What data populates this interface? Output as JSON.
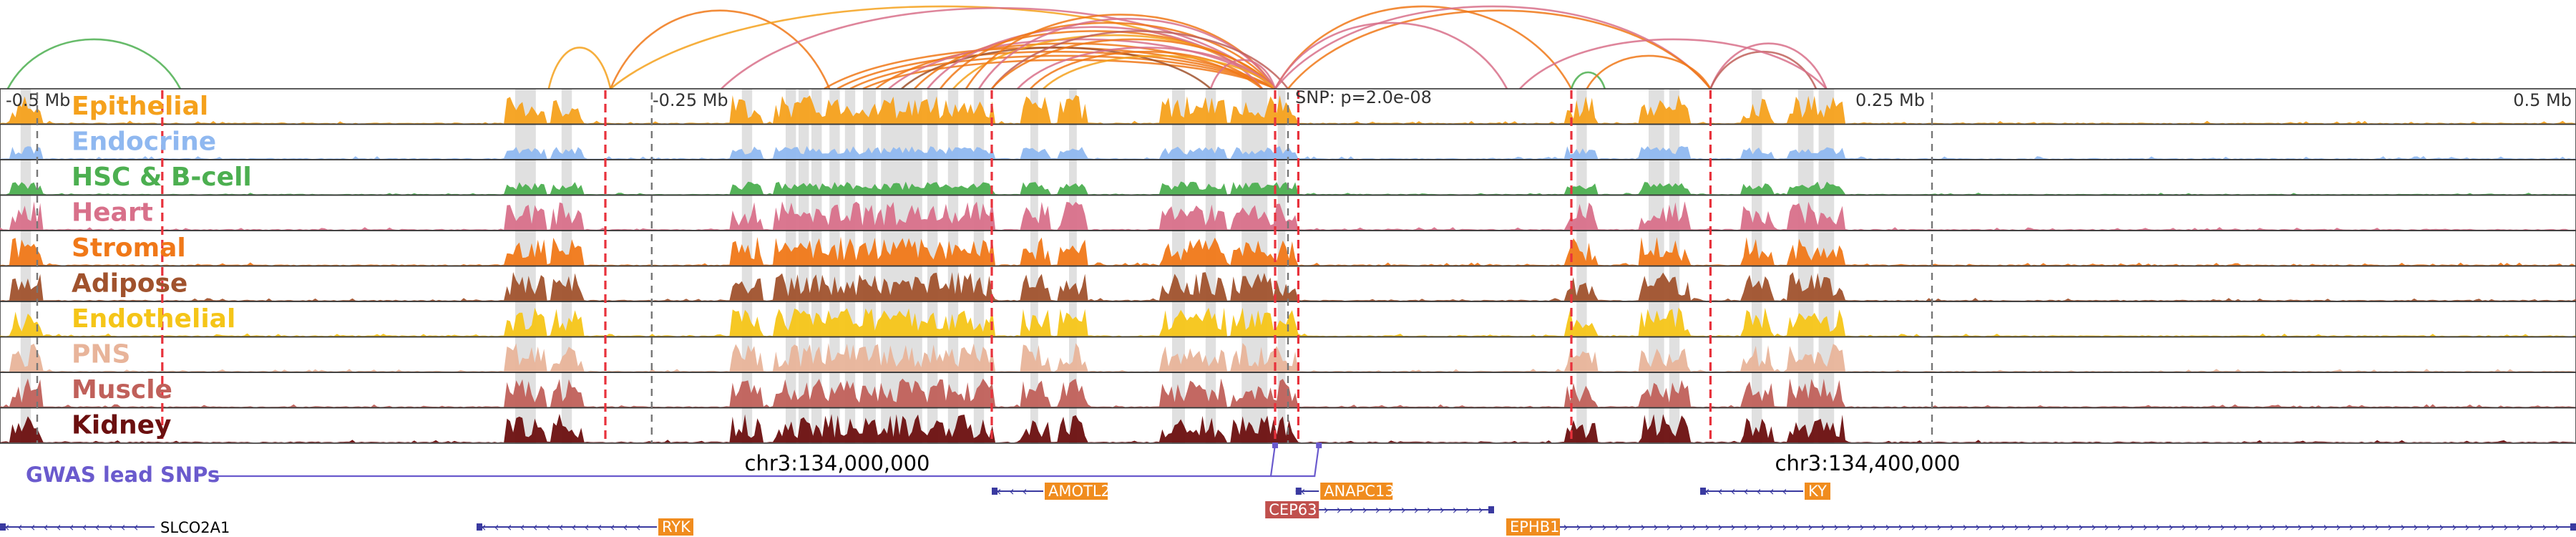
{
  "view": {
    "region_start_offset_mb": -0.5,
    "region_end_offset_mb": 0.5,
    "colors": {
      "highlight": "#e0e0e0",
      "marker": "#e8323c",
      "axis_dash": "#777777",
      "gwas": "#6a5acd",
      "gene_line": "#3a3aa0",
      "gene_box": "#f08c1e",
      "gene_box_alt": "#c0504d"
    }
  },
  "axis": {
    "ticks": [
      {
        "label": "-0.5 Mb",
        "offset_mb": -0.5
      },
      {
        "label": "-0.25 Mb",
        "offset_mb": -0.25
      },
      {
        "label": "0.25 Mb",
        "offset_mb": 0.25
      },
      {
        "label": "0.5 Mb",
        "offset_mb": 0.5
      }
    ],
    "snp_label": "SNP: p=2.0e-08",
    "snp_offset_mb": 0.0
  },
  "tracks": [
    {
      "name": "Epithelial",
      "color": "#f5a11c"
    },
    {
      "name": "Endocrine",
      "color": "#8fb8f0"
    },
    {
      "name": "HSC & B-cell",
      "color": "#4caf50"
    },
    {
      "name": "Heart",
      "color": "#d8708a"
    },
    {
      "name": "Stromal",
      "color": "#f07818"
    },
    {
      "name": "Adipose",
      "color": "#a0522d"
    },
    {
      "name": "Endothelial",
      "color": "#f5c518"
    },
    {
      "name": "PNS",
      "color": "#e8b49a"
    },
    {
      "name": "Muscle",
      "color": "#c0605a"
    },
    {
      "name": "Kidney",
      "color": "#6b0f0f"
    }
  ],
  "gwas": {
    "label": "GWAS lead SNPs",
    "snp_offsets_mb": [
      -0.005,
      0.012
    ]
  },
  "coordinates": [
    {
      "label": "chr3:134,000,000",
      "offset_mb": -0.175
    },
    {
      "label": "chr3:134,400,000",
      "offset_mb": 0.225
    }
  ],
  "genes": [
    {
      "name": "AMOTL2",
      "start_mb": -0.115,
      "end_mb": -0.095,
      "strand": "-",
      "row": 1,
      "label_style": "box"
    },
    {
      "name": "ANAPC13",
      "start_mb": 0.003,
      "end_mb": 0.012,
      "strand": "-",
      "row": 1,
      "label_style": "box"
    },
    {
      "name": "KY",
      "start_mb": 0.16,
      "end_mb": 0.2,
      "strand": "-",
      "row": 1,
      "label_style": "box"
    },
    {
      "name": "CEP63",
      "start_mb": 0.012,
      "end_mb": 0.08,
      "strand": "+",
      "row": 2,
      "label_style": "box-alt"
    },
    {
      "name": "SLCO2A1",
      "start_mb": -0.5,
      "end_mb": -0.44,
      "strand": "-",
      "row": 3,
      "label_style": "plain"
    },
    {
      "name": "RYK",
      "start_mb": -0.315,
      "end_mb": -0.245,
      "strand": "-",
      "row": 3,
      "label_style": "box"
    },
    {
      "name": "EPHB1",
      "start_mb": 0.1,
      "end_mb": 0.5,
      "strand": "+",
      "row": 3,
      "label_style": "box"
    }
  ],
  "highlights_mb": [
    [
      -0.492,
      -0.488
    ],
    [
      -0.3,
      -0.292
    ],
    [
      -0.282,
      -0.278
    ],
    [
      -0.212,
      -0.208
    ],
    [
      -0.195,
      -0.191
    ],
    [
      -0.19,
      -0.186
    ],
    [
      -0.185,
      -0.181
    ],
    [
      -0.178,
      -0.174
    ],
    [
      -0.172,
      -0.168
    ],
    [
      -0.165,
      -0.16
    ],
    [
      -0.158,
      -0.142
    ],
    [
      -0.14,
      -0.136
    ],
    [
      -0.132,
      -0.128
    ],
    [
      -0.122,
      -0.118
    ],
    [
      -0.1,
      -0.097
    ],
    [
      -0.085,
      -0.082
    ],
    [
      -0.045,
      -0.04
    ],
    [
      -0.032,
      -0.028
    ],
    [
      -0.018,
      -0.008
    ],
    [
      -0.004,
      -0.001
    ],
    [
      0.112,
      0.116
    ],
    [
      0.14,
      0.146
    ],
    [
      0.148,
      0.152
    ],
    [
      0.18,
      0.184
    ],
    [
      0.198,
      0.204
    ],
    [
      0.206,
      0.212
    ]
  ],
  "markers_mb": [
    -0.437,
    -0.265,
    -0.115,
    -0.005,
    0.004,
    0.11,
    0.164
  ],
  "axis_dash_mb": [
    -0.5,
    -0.247,
    0.0,
    0.25
  ],
  "loops": [
    {
      "from_mb": -0.497,
      "to_mb": -0.43,
      "color": "#4caf50",
      "height": 0.6
    },
    {
      "from_mb": -0.287,
      "to_mb": -0.263,
      "color": "#f5a11c",
      "height": 0.5
    },
    {
      "from_mb": -0.263,
      "to_mb": -0.178,
      "color": "#f07818",
      "height": 0.95
    },
    {
      "from_mb": -0.263,
      "to_mb": -0.005,
      "color": "#f5a11c",
      "height": 1.0
    },
    {
      "from_mb": -0.22,
      "to_mb": -0.005,
      "color": "#d8708a",
      "height": 0.98
    },
    {
      "from_mb": -0.18,
      "to_mb": -0.005,
      "color": "#f07818",
      "height": 0.5
    },
    {
      "from_mb": -0.175,
      "to_mb": -0.005,
      "color": "#f07818",
      "height": 0.45
    },
    {
      "from_mb": -0.17,
      "to_mb": -0.005,
      "color": "#f07818",
      "height": 0.4
    },
    {
      "from_mb": -0.165,
      "to_mb": -0.005,
      "color": "#f07818",
      "height": 0.35
    },
    {
      "from_mb": -0.16,
      "to_mb": -0.01,
      "color": "#f07818",
      "height": 0.55
    },
    {
      "from_mb": -0.155,
      "to_mb": -0.005,
      "color": "#d8708a",
      "height": 0.6
    },
    {
      "from_mb": -0.15,
      "to_mb": -0.03,
      "color": "#a0522d",
      "height": 0.5
    },
    {
      "from_mb": -0.145,
      "to_mb": -0.005,
      "color": "#f07818",
      "height": 0.7
    },
    {
      "from_mb": -0.14,
      "to_mb": -0.01,
      "color": "#d8708a",
      "height": 0.75
    },
    {
      "from_mb": -0.135,
      "to_mb": -0.005,
      "color": "#f07818",
      "height": 0.8
    },
    {
      "from_mb": -0.13,
      "to_mb": -0.005,
      "color": "#f5a11c",
      "height": 0.65
    },
    {
      "from_mb": -0.125,
      "to_mb": -0.005,
      "color": "#f07818",
      "height": 0.9
    },
    {
      "from_mb": -0.12,
      "to_mb": -0.005,
      "color": "#d8708a",
      "height": 0.85
    },
    {
      "from_mb": -0.115,
      "to_mb": 0.0,
      "color": "#c0605a",
      "height": 0.7
    },
    {
      "from_mb": -0.115,
      "to_mb": -0.005,
      "color": "#f07818",
      "height": 0.6
    },
    {
      "from_mb": -0.105,
      "to_mb": -0.005,
      "color": "#d8708a",
      "height": 0.5
    },
    {
      "from_mb": -0.1,
      "to_mb": -0.01,
      "color": "#f07818",
      "height": 0.45
    },
    {
      "from_mb": -0.095,
      "to_mb": -0.005,
      "color": "#f5a11c",
      "height": 0.4
    },
    {
      "from_mb": -0.03,
      "to_mb": -0.005,
      "color": "#d8708a",
      "height": 0.35
    },
    {
      "from_mb": -0.005,
      "to_mb": 0.11,
      "color": "#f07818",
      "height": 1.0
    },
    {
      "from_mb": -0.005,
      "to_mb": 0.164,
      "color": "#d8708a",
      "height": 1.0
    },
    {
      "from_mb": 0.0,
      "to_mb": 0.164,
      "color": "#f07818",
      "height": 0.95
    },
    {
      "from_mb": -0.005,
      "to_mb": 0.085,
      "color": "#d8708a",
      "height": 0.8
    },
    {
      "from_mb": 0.11,
      "to_mb": 0.123,
      "color": "#4caf50",
      "height": 0.2
    },
    {
      "from_mb": 0.116,
      "to_mb": 0.164,
      "color": "#f07818",
      "height": 0.4
    },
    {
      "from_mb": 0.164,
      "to_mb": 0.209,
      "color": "#d8708a",
      "height": 0.55
    },
    {
      "from_mb": 0.164,
      "to_mb": 0.205,
      "color": "#c0605a",
      "height": 0.45
    },
    {
      "from_mb": 0.09,
      "to_mb": 0.209,
      "color": "#d8708a",
      "height": 0.6
    }
  ]
}
